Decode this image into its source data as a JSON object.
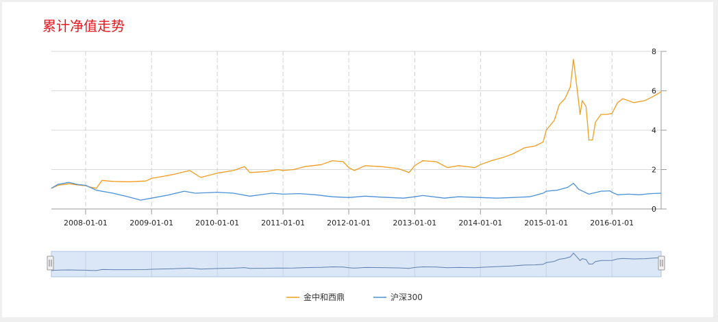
{
  "header": {
    "title": "累计净值走势"
  },
  "chart_data": {
    "type": "line",
    "title": "累计净值走势",
    "xlabel": "",
    "ylabel": "",
    "x_tick_labels": [
      "2008-01-01",
      "2009-01-01",
      "2010-01-01",
      "2011-01-01",
      "2012-01-01",
      "2013-01-01",
      "2014-01-01",
      "2015-01-01",
      "2016-01-01"
    ],
    "y_ticks": [
      0,
      2,
      4,
      6,
      8
    ],
    "ylim": [
      0,
      8
    ],
    "xlim": [
      "2007-06-25",
      "2016-09-30"
    ],
    "grid": true,
    "legend": "bottom-center",
    "navigator": true,
    "series": [
      {
        "name": "金中和西鼎",
        "color": "#f29b1d",
        "points": [
          [
            "2007-06-25",
            1.05
          ],
          [
            "2007-08-01",
            1.2
          ],
          [
            "2007-10-01",
            1.28
          ],
          [
            "2007-11-15",
            1.22
          ],
          [
            "2008-01-01",
            1.18
          ],
          [
            "2008-02-01",
            1.1
          ],
          [
            "2008-03-01",
            1.05
          ],
          [
            "2008-04-01",
            1.45
          ],
          [
            "2008-06-01",
            1.4
          ],
          [
            "2008-09-01",
            1.38
          ],
          [
            "2008-12-01",
            1.42
          ],
          [
            "2009-01-01",
            1.55
          ],
          [
            "2009-03-01",
            1.65
          ],
          [
            "2009-05-01",
            1.75
          ],
          [
            "2009-08-01",
            1.95
          ],
          [
            "2009-10-01",
            1.6
          ],
          [
            "2010-01-01",
            1.82
          ],
          [
            "2010-04-01",
            1.95
          ],
          [
            "2010-06-01",
            2.15
          ],
          [
            "2010-07-01",
            1.85
          ],
          [
            "2010-10-01",
            1.9
          ],
          [
            "2010-12-01",
            2.0
          ],
          [
            "2011-01-01",
            1.95
          ],
          [
            "2011-03-01",
            2.0
          ],
          [
            "2011-05-01",
            2.15
          ],
          [
            "2011-08-01",
            2.25
          ],
          [
            "2011-10-01",
            2.45
          ],
          [
            "2011-12-01",
            2.4
          ],
          [
            "2012-01-01",
            2.1
          ],
          [
            "2012-02-01",
            1.95
          ],
          [
            "2012-04-01",
            2.2
          ],
          [
            "2012-07-01",
            2.15
          ],
          [
            "2012-10-01",
            2.05
          ],
          [
            "2012-12-01",
            1.85
          ],
          [
            "2013-01-01",
            2.2
          ],
          [
            "2013-02-15",
            2.45
          ],
          [
            "2013-05-01",
            2.4
          ],
          [
            "2013-07-01",
            2.1
          ],
          [
            "2013-09-01",
            2.2
          ],
          [
            "2013-12-01",
            2.1
          ],
          [
            "2014-01-01",
            2.25
          ],
          [
            "2014-03-01",
            2.45
          ],
          [
            "2014-05-01",
            2.6
          ],
          [
            "2014-07-01",
            2.8
          ],
          [
            "2014-09-01",
            3.1
          ],
          [
            "2014-11-01",
            3.2
          ],
          [
            "2014-12-15",
            3.4
          ],
          [
            "2015-01-01",
            4.0
          ],
          [
            "2015-02-15",
            4.5
          ],
          [
            "2015-03-15",
            5.3
          ],
          [
            "2015-04-15",
            5.6
          ],
          [
            "2015-05-15",
            6.2
          ],
          [
            "2015-06-01",
            7.6
          ],
          [
            "2015-06-20",
            6.2
          ],
          [
            "2015-07-08",
            4.8
          ],
          [
            "2015-07-20",
            5.5
          ],
          [
            "2015-08-10",
            5.2
          ],
          [
            "2015-08-26",
            3.5
          ],
          [
            "2015-09-15",
            3.5
          ],
          [
            "2015-10-01",
            4.4
          ],
          [
            "2015-11-01",
            4.8
          ],
          [
            "2015-12-01",
            4.8
          ],
          [
            "2016-01-01",
            4.85
          ],
          [
            "2016-02-01",
            5.4
          ],
          [
            "2016-03-01",
            5.6
          ],
          [
            "2016-05-01",
            5.4
          ],
          [
            "2016-07-01",
            5.5
          ],
          [
            "2016-08-15",
            5.7
          ],
          [
            "2016-09-30",
            5.95
          ]
        ]
      },
      {
        "name": "沪深300",
        "color": "#4a90d9",
        "points": [
          [
            "2007-06-25",
            1.05
          ],
          [
            "2007-08-01",
            1.25
          ],
          [
            "2007-10-01",
            1.35
          ],
          [
            "2007-11-15",
            1.25
          ],
          [
            "2008-01-01",
            1.2
          ],
          [
            "2008-03-01",
            0.95
          ],
          [
            "2008-06-01",
            0.8
          ],
          [
            "2008-09-01",
            0.6
          ],
          [
            "2008-11-01",
            0.45
          ],
          [
            "2009-01-01",
            0.55
          ],
          [
            "2009-04-01",
            0.7
          ],
          [
            "2009-07-01",
            0.9
          ],
          [
            "2009-09-01",
            0.8
          ],
          [
            "2010-01-01",
            0.85
          ],
          [
            "2010-04-01",
            0.8
          ],
          [
            "2010-07-01",
            0.65
          ],
          [
            "2010-11-01",
            0.8
          ],
          [
            "2011-01-01",
            0.75
          ],
          [
            "2011-04-01",
            0.78
          ],
          [
            "2011-07-01",
            0.72
          ],
          [
            "2011-10-01",
            0.62
          ],
          [
            "2012-01-01",
            0.58
          ],
          [
            "2012-04-01",
            0.65
          ],
          [
            "2012-07-01",
            0.6
          ],
          [
            "2012-11-01",
            0.55
          ],
          [
            "2013-01-01",
            0.62
          ],
          [
            "2013-02-15",
            0.68
          ],
          [
            "2013-06-15",
            0.55
          ],
          [
            "2013-09-01",
            0.62
          ],
          [
            "2014-01-01",
            0.58
          ],
          [
            "2014-04-01",
            0.55
          ],
          [
            "2014-07-01",
            0.58
          ],
          [
            "2014-10-01",
            0.62
          ],
          [
            "2014-12-15",
            0.8
          ],
          [
            "2015-01-01",
            0.9
          ],
          [
            "2015-03-01",
            0.95
          ],
          [
            "2015-05-01",
            1.1
          ],
          [
            "2015-06-01",
            1.3
          ],
          [
            "2015-07-01",
            1.0
          ],
          [
            "2015-08-26",
            0.75
          ],
          [
            "2015-11-01",
            0.9
          ],
          [
            "2015-12-20",
            0.92
          ],
          [
            "2016-01-01",
            0.85
          ],
          [
            "2016-02-01",
            0.72
          ],
          [
            "2016-04-01",
            0.75
          ],
          [
            "2016-06-01",
            0.72
          ],
          [
            "2016-08-01",
            0.78
          ],
          [
            "2016-09-30",
            0.8
          ]
        ]
      }
    ]
  }
}
